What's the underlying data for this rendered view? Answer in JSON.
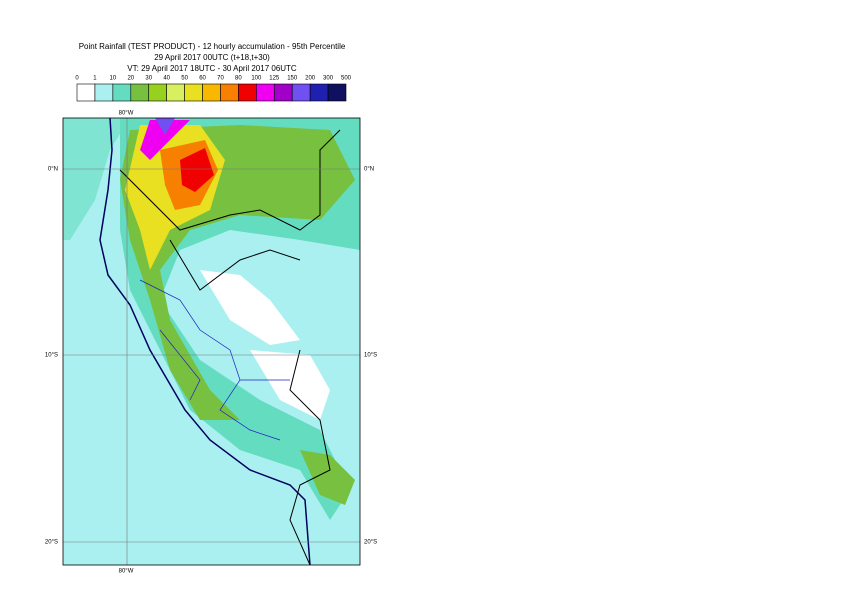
{
  "header": {
    "title": "Point Rainfall (TEST PRODUCT) - 12 hourly accumulation - 95th Percentile",
    "line2": "29 April 2017 00UTC (t+18,t+30)",
    "line3": "VT: 29 April 2017 18UTC - 30 April 2017 06UTC"
  },
  "legend": {
    "thresholds": [
      0,
      1,
      10,
      20,
      30,
      40,
      50,
      60,
      70,
      80,
      100,
      125,
      150,
      200,
      300,
      500
    ],
    "colors": [
      "#ffffff",
      "#aaf0f0",
      "#64dcc0",
      "#78c040",
      "#98d020",
      "#d8f060",
      "#e8e020",
      "#f8b800",
      "#f88000",
      "#f00000",
      "#f000f0",
      "#a000c8",
      "#7050f0",
      "#2020b0",
      "#101060"
    ]
  },
  "map": {
    "lon_labels": [
      "80°W"
    ],
    "lat_labels": [
      "0°N",
      "10°S",
      "20°S"
    ]
  }
}
